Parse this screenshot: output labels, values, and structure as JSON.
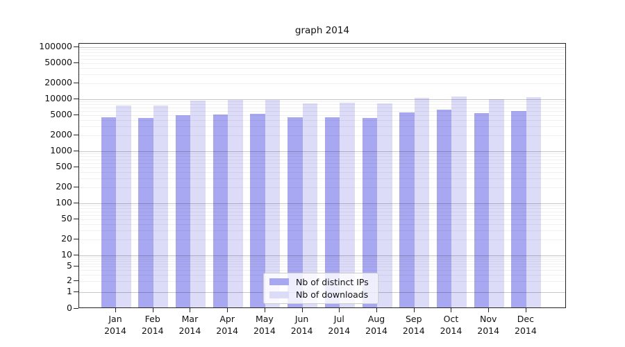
{
  "chart_data": {
    "type": "bar",
    "title": "graph 2014",
    "categories": [
      "Jan 2014",
      "Feb 2014",
      "Mar 2014",
      "Apr 2014",
      "May 2014",
      "Jun 2014",
      "Jul 2014",
      "Aug 2014",
      "Sep 2014",
      "Oct 2014",
      "Nov 2014",
      "Dec 2014"
    ],
    "x_tick_month": [
      "Jan",
      "Feb",
      "Mar",
      "Apr",
      "May",
      "Jun",
      "Jul",
      "Aug",
      "Sep",
      "Oct",
      "Nov",
      "Dec"
    ],
    "x_tick_year": "2014",
    "series": [
      {
        "name": "Nb of distinct IPs",
        "color": "#a8a8f2",
        "values": [
          4200,
          4100,
          4600,
          4800,
          5000,
          4200,
          4250,
          4100,
          5300,
          5900,
          5100,
          5600
        ]
      },
      {
        "name": "Nb of downloads",
        "color": "#dcdcf8",
        "values": [
          7100,
          7100,
          8900,
          9200,
          9100,
          7800,
          8000,
          7800,
          10000,
          10800,
          9300,
          10300
        ]
      }
    ],
    "xlabel": "",
    "ylabel": "",
    "y_scale": "log-like (symlog: linear below 1, compressed decade 1-10)",
    "y_ticks": [
      100000,
      50000,
      20000,
      10000,
      5000,
      2000,
      1000,
      500,
      200,
      100,
      50,
      20,
      10,
      5,
      2,
      1,
      0
    ],
    "ylim": [
      0,
      100000
    ],
    "grid": "major dark gray at powers of 10, faint minor lines at 2-9 multiples, drawn over bars",
    "legend_position": "lower center",
    "legend_labels": [
      "Nb of distinct IPs",
      "Nb of downloads"
    ]
  }
}
